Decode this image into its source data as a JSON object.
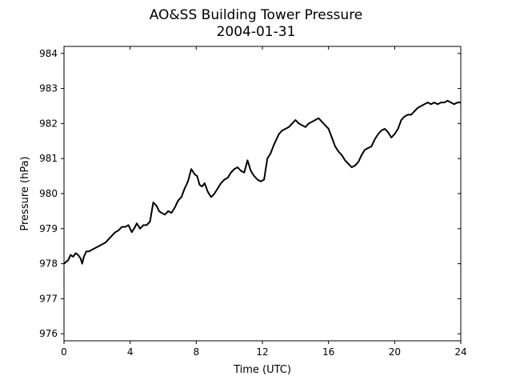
{
  "chart_data": {
    "type": "line",
    "title": "AO&SS Building Tower Pressure",
    "subtitle": "2004-01-31",
    "xlabel": "Time (UTC)",
    "ylabel": "Pressure (hPa)",
    "xlim": [
      0,
      24
    ],
    "ylim": [
      975.8,
      984.2
    ],
    "xticks": [
      0,
      4,
      8,
      12,
      16,
      20,
      24
    ],
    "yticks": [
      976,
      977,
      978,
      979,
      980,
      981,
      982,
      983,
      984
    ],
    "grid": false,
    "line_color": "#000000",
    "series": [
      {
        "x": [
          0,
          0.25,
          0.4,
          0.55,
          0.7,
          0.85,
          1.0,
          1.1,
          1.2,
          1.35,
          1.5,
          1.7,
          1.9,
          2.1,
          2.3,
          2.5,
          2.7,
          2.9,
          3.1,
          3.3,
          3.5,
          3.7,
          3.9,
          4.1,
          4.3,
          4.4,
          4.6,
          4.8,
          5.0,
          5.2,
          5.4,
          5.6,
          5.75,
          5.9,
          6.1,
          6.3,
          6.5,
          6.7,
          6.9,
          7.1,
          7.3,
          7.5,
          7.7,
          7.9,
          8.05,
          8.2,
          8.35,
          8.5,
          8.7,
          8.9,
          9.1,
          9.3,
          9.5,
          9.7,
          9.9,
          10.1,
          10.3,
          10.5,
          10.7,
          10.9,
          11.1,
          11.3,
          11.5,
          11.7,
          11.9,
          12.1,
          12.3,
          12.5,
          12.7,
          12.85,
          13.0,
          13.2,
          13.4,
          13.6,
          13.8,
          14.0,
          14.2,
          14.4,
          14.6,
          14.8,
          15.0,
          15.2,
          15.4,
          15.6,
          15.8,
          16.0,
          16.2,
          16.4,
          16.6,
          16.8,
          17.0,
          17.2,
          17.4,
          17.6,
          17.8,
          18.0,
          18.2,
          18.4,
          18.6,
          18.8,
          19.0,
          19.2,
          19.4,
          19.6,
          19.8,
          20.0,
          20.2,
          20.4,
          20.6,
          20.8,
          21.0,
          21.2,
          21.4,
          21.6,
          21.8,
          22.0,
          22.2,
          22.4,
          22.6,
          22.8,
          23.0,
          23.2,
          23.4,
          23.6,
          23.8,
          24.0
        ],
        "values": [
          978.0,
          978.1,
          978.25,
          978.2,
          978.3,
          978.25,
          978.15,
          978.0,
          978.2,
          978.35,
          978.35,
          978.4,
          978.45,
          978.5,
          978.55,
          978.6,
          978.7,
          978.8,
          978.9,
          978.95,
          979.05,
          979.05,
          979.1,
          978.9,
          979.05,
          979.15,
          979.0,
          979.1,
          979.1,
          979.2,
          979.75,
          979.65,
          979.5,
          979.45,
          979.4,
          979.5,
          979.45,
          979.6,
          979.8,
          979.9,
          980.15,
          980.35,
          980.7,
          980.55,
          980.5,
          980.25,
          980.2,
          980.3,
          980.05,
          979.9,
          980.0,
          980.15,
          980.3,
          980.4,
          980.45,
          980.6,
          980.7,
          980.75,
          980.65,
          980.6,
          980.95,
          980.65,
          980.5,
          980.4,
          980.35,
          980.4,
          981.0,
          981.15,
          981.4,
          981.55,
          981.7,
          981.8,
          981.85,
          981.9,
          982.0,
          982.1,
          982.0,
          981.95,
          981.9,
          982.0,
          982.05,
          982.1,
          982.15,
          982.05,
          981.95,
          981.85,
          981.6,
          981.35,
          981.2,
          981.1,
          980.95,
          980.85,
          980.75,
          980.8,
          980.9,
          981.1,
          981.25,
          981.3,
          981.35,
          981.55,
          981.7,
          981.8,
          981.85,
          981.75,
          981.6,
          981.7,
          981.85,
          982.1,
          982.2,
          982.25,
          982.25,
          982.35,
          982.45,
          982.5,
          982.55,
          982.6,
          982.55,
          982.6,
          982.55,
          982.6,
          982.6,
          982.65,
          982.6,
          982.55,
          982.6,
          982.6
        ]
      }
    ]
  }
}
